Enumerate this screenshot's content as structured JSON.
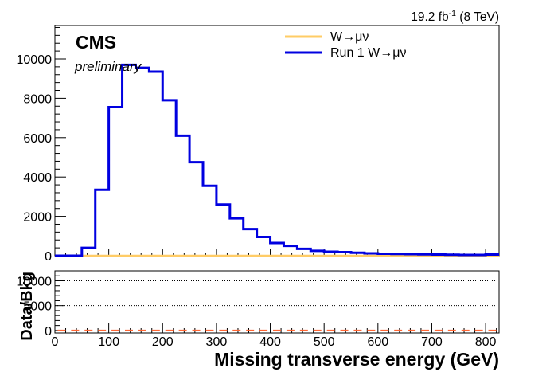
{
  "header": {
    "lumi_value": "19.2 fb",
    "lumi_exp": "-1",
    "lumi_energy": " (8 TeV)",
    "experiment": "CMS",
    "status": "preliminary"
  },
  "chart_data": [
    {
      "type": "line",
      "step": true,
      "title": "",
      "xlabel": "",
      "ylabel": "",
      "xlim": [
        0,
        825
      ],
      "ylim": [
        0,
        11700
      ],
      "yticks": [
        0,
        2000,
        4000,
        6000,
        8000,
        10000
      ],
      "xticks": [
        0,
        100,
        200,
        300,
        400,
        500,
        600,
        700,
        800
      ],
      "bin_edges": [
        0,
        25,
        50,
        75,
        100,
        125,
        150,
        175,
        200,
        225,
        250,
        275,
        300,
        325,
        350,
        375,
        400,
        425,
        450,
        475,
        500,
        525,
        550,
        575,
        600,
        625,
        650,
        675,
        700,
        725,
        750,
        775,
        800,
        825
      ],
      "legend_position": "top-right",
      "series": [
        {
          "name": "W→μν",
          "color": "#ffcc66",
          "values": [
            0,
            0,
            0,
            0,
            0,
            0,
            0,
            0,
            0,
            0,
            0,
            0,
            0,
            0,
            0,
            0,
            0,
            0,
            0,
            0,
            0,
            0,
            0,
            0,
            0,
            0,
            0,
            0,
            0,
            0,
            0,
            0,
            0
          ]
        },
        {
          "name": "Run 1 W→μν",
          "color": "#0000e0",
          "values": [
            0,
            0,
            400,
            3350,
            7550,
            9700,
            9550,
            9350,
            7900,
            6100,
            4750,
            3550,
            2600,
            1900,
            1350,
            950,
            650,
            500,
            350,
            250,
            200,
            180,
            150,
            120,
            100,
            90,
            80,
            70,
            60,
            50,
            40,
            40,
            60
          ]
        }
      ]
    },
    {
      "type": "scatter",
      "title": "",
      "xlabel": "Missing transverse energy (GeV)",
      "ylabel": "Data/Bkg",
      "xlim": [
        0,
        825
      ],
      "ylim": [
        -500,
        12000
      ],
      "yticks": [
        0,
        5000,
        10000
      ],
      "ytick_labels": [
        "0",
        "5000",
        "10000"
      ],
      "xticks": [
        0,
        100,
        200,
        300,
        400,
        500,
        600,
        700,
        800
      ],
      "grid_lines_y": [
        5000,
        10000
      ],
      "series": [
        {
          "color": "#ff6633",
          "x": [
            12.5,
            37.5,
            62.5,
            87.5,
            112.5,
            137.5,
            162.5,
            187.5,
            212.5,
            237.5,
            262.5,
            287.5,
            312.5,
            337.5,
            362.5,
            387.5,
            412.5,
            437.5,
            462.5,
            487.5,
            512.5,
            537.5,
            562.5,
            587.5,
            612.5,
            637.5,
            662.5,
            687.5,
            712.5,
            737.5,
            762.5,
            787.5,
            812.5
          ],
          "values": [
            0,
            0,
            0,
            0,
            0,
            0,
            0,
            0,
            0,
            0,
            0,
            0,
            0,
            0,
            0,
            0,
            0,
            0,
            0,
            0,
            0,
            0,
            0,
            0,
            0,
            0,
            0,
            0,
            0,
            0,
            0,
            0,
            0
          ]
        }
      ]
    }
  ]
}
